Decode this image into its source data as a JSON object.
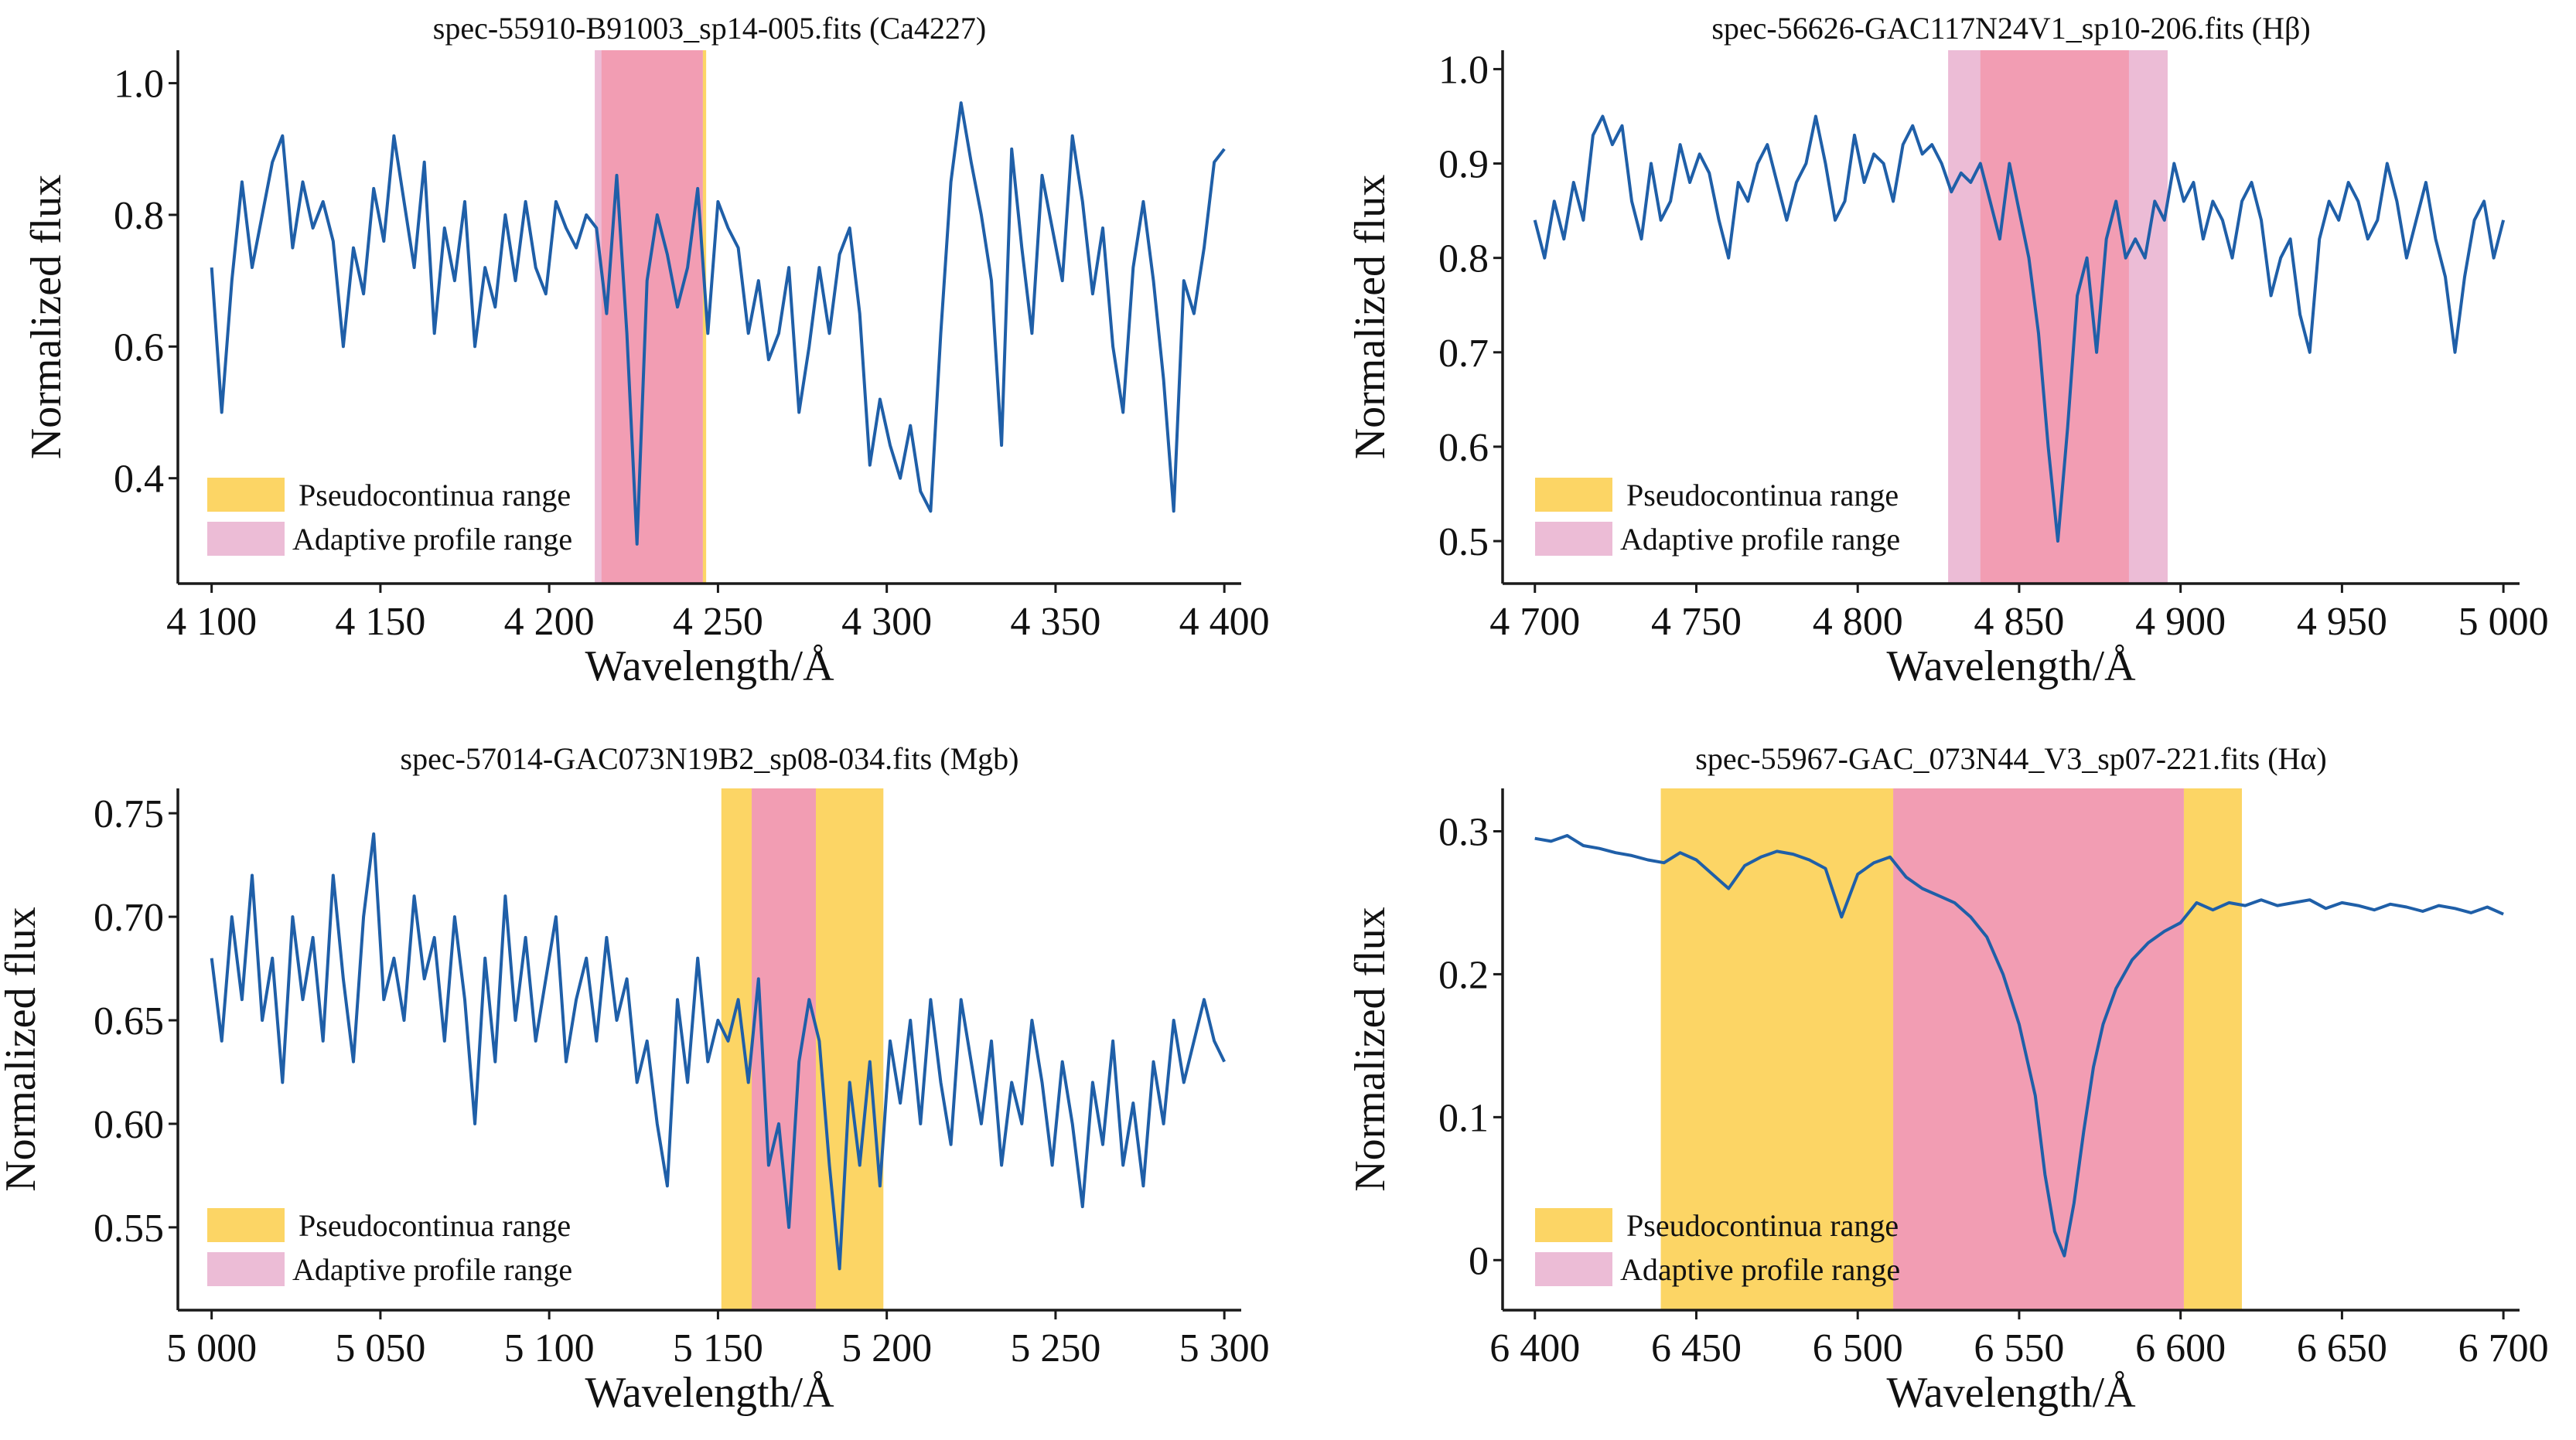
{
  "colors": {
    "line": "#1f5fa8",
    "pseudocontinua": "#fcd565",
    "adaptive_legend": "#ecbcd6",
    "overlap": "#f29db3",
    "axis": "#1a1a1a"
  },
  "chart_data": [
    {
      "type": "line",
      "title": "spec-55910-B91003_sp14-005.fits (Ca4227)",
      "xlabel": "Wavelength/Å",
      "ylabel": "Normalized flux",
      "xlim": [
        4090,
        4405
      ],
      "ylim": [
        0.24,
        1.05
      ],
      "xticks": [
        4100,
        4150,
        4200,
        4250,
        4300,
        4350,
        4400
      ],
      "xtick_labels": [
        "4 100",
        "4 150",
        "4 200",
        "4 250",
        "4 300",
        "4 350",
        "4 400"
      ],
      "yticks": [
        0.4,
        0.6,
        0.8,
        1.0
      ],
      "ytick_labels": [
        "0.4",
        "0.6",
        "0.8",
        "1.0"
      ],
      "pseudocontinua_bands": [
        [
          4215.5,
          4246.5
        ]
      ],
      "adaptive_bands": [
        [
          4213.5,
          4245.5
        ]
      ],
      "legend": [
        "Pseudocontinua range",
        "Adaptive profile range"
      ],
      "legend_position": "lower-left",
      "series": [
        {
          "x": [
            4100,
            4103,
            4106,
            4109,
            4112,
            4115,
            4118,
            4121,
            4124,
            4127,
            4130,
            4133,
            4136,
            4139,
            4142,
            4145,
            4148,
            4151,
            4154,
            4157,
            4160,
            4163,
            4166,
            4169,
            4172,
            4175,
            4178,
            4181,
            4184,
            4187,
            4190,
            4193,
            4196,
            4199,
            4202,
            4205,
            4208,
            4211,
            4214,
            4217,
            4220,
            4223,
            4226,
            4229,
            4232,
            4235,
            4238,
            4241,
            4244,
            4247,
            4250,
            4253,
            4256,
            4259,
            4262,
            4265,
            4268,
            4271,
            4274,
            4277,
            4280,
            4283,
            4286,
            4289,
            4292,
            4295,
            4298,
            4301,
            4304,
            4307,
            4310,
            4313,
            4316,
            4319,
            4322,
            4325,
            4328,
            4331,
            4334,
            4337,
            4340,
            4343,
            4346,
            4349,
            4352,
            4355,
            4358,
            4361,
            4364,
            4367,
            4370,
            4373,
            4376,
            4379,
            4382,
            4385,
            4388,
            4391,
            4394,
            4397,
            4400
          ],
          "y": [
            0.72,
            0.5,
            0.7,
            0.85,
            0.72,
            0.8,
            0.88,
            0.92,
            0.75,
            0.85,
            0.78,
            0.82,
            0.76,
            0.6,
            0.75,
            0.68,
            0.84,
            0.76,
            0.92,
            0.82,
            0.72,
            0.88,
            0.62,
            0.78,
            0.7,
            0.82,
            0.6,
            0.72,
            0.66,
            0.8,
            0.7,
            0.82,
            0.72,
            0.68,
            0.82,
            0.78,
            0.75,
            0.8,
            0.78,
            0.65,
            0.86,
            0.62,
            0.3,
            0.7,
            0.8,
            0.74,
            0.66,
            0.72,
            0.84,
            0.62,
            0.82,
            0.78,
            0.75,
            0.62,
            0.7,
            0.58,
            0.62,
            0.72,
            0.5,
            0.6,
            0.72,
            0.62,
            0.74,
            0.78,
            0.65,
            0.42,
            0.52,
            0.45,
            0.4,
            0.48,
            0.38,
            0.35,
            0.62,
            0.85,
            0.97,
            0.88,
            0.8,
            0.7,
            0.45,
            0.9,
            0.75,
            0.62,
            0.86,
            0.78,
            0.7,
            0.92,
            0.82,
            0.68,
            0.78,
            0.6,
            0.5,
            0.72,
            0.82,
            0.7,
            0.55,
            0.35,
            0.7,
            0.65,
            0.75,
            0.88,
            0.9
          ]
        }
      ]
    },
    {
      "type": "line",
      "title": "spec-56626-GAC117N24V1_sp10-206.fits (Hβ)",
      "xlabel": "Wavelength/Å",
      "ylabel": "Normalized flux",
      "xlim": [
        4690,
        5005
      ],
      "ylim": [
        0.455,
        1.02
      ],
      "xticks": [
        4700,
        4750,
        4800,
        4850,
        4900,
        4950,
        5000
      ],
      "xtick_labels": [
        "4 700",
        "4 750",
        "4 800",
        "4 850",
        "4 900",
        "4 950",
        "5 000"
      ],
      "yticks": [
        0.5,
        0.6,
        0.7,
        0.8,
        0.9,
        1.0
      ],
      "ytick_labels": [
        "0.5",
        "0.6",
        "0.7",
        "0.8",
        "0.9",
        "1.0"
      ],
      "pseudocontinua_bands": [
        [
          4838,
          4884
        ]
      ],
      "adaptive_bands": [
        [
          4828,
          4896
        ]
      ],
      "legend": [
        "Pseudocontinua range",
        "Adaptive profile range"
      ],
      "legend_position": "lower-left",
      "series": [
        {
          "x": [
            4700,
            4703,
            4706,
            4709,
            4712,
            4715,
            4718,
            4721,
            4724,
            4727,
            4730,
            4733,
            4736,
            4739,
            4742,
            4745,
            4748,
            4751,
            4754,
            4757,
            4760,
            4763,
            4766,
            4769,
            4772,
            4775,
            4778,
            4781,
            4784,
            4787,
            4790,
            4793,
            4796,
            4799,
            4802,
            4805,
            4808,
            4811,
            4814,
            4817,
            4820,
            4823,
            4826,
            4829,
            4832,
            4835,
            4838,
            4841,
            4844,
            4847,
            4850,
            4853,
            4856,
            4859,
            4862,
            4865,
            4868,
            4871,
            4874,
            4877,
            4880,
            4883,
            4886,
            4889,
            4892,
            4895,
            4898,
            4901,
            4904,
            4907,
            4910,
            4913,
            4916,
            4919,
            4922,
            4925,
            4928,
            4931,
            4934,
            4937,
            4940,
            4943,
            4946,
            4949,
            4952,
            4955,
            4958,
            4961,
            4964,
            4967,
            4970,
            4973,
            4976,
            4979,
            4982,
            4985,
            4988,
            4991,
            4994,
            4997,
            5000
          ],
          "y": [
            0.84,
            0.8,
            0.86,
            0.82,
            0.88,
            0.84,
            0.93,
            0.95,
            0.92,
            0.94,
            0.86,
            0.82,
            0.9,
            0.84,
            0.86,
            0.92,
            0.88,
            0.91,
            0.89,
            0.84,
            0.8,
            0.88,
            0.86,
            0.9,
            0.92,
            0.88,
            0.84,
            0.88,
            0.9,
            0.95,
            0.9,
            0.84,
            0.86,
            0.93,
            0.88,
            0.91,
            0.9,
            0.86,
            0.92,
            0.94,
            0.91,
            0.92,
            0.9,
            0.87,
            0.89,
            0.88,
            0.9,
            0.86,
            0.82,
            0.9,
            0.85,
            0.8,
            0.72,
            0.6,
            0.5,
            0.62,
            0.76,
            0.8,
            0.7,
            0.82,
            0.86,
            0.8,
            0.82,
            0.8,
            0.86,
            0.84,
            0.9,
            0.86,
            0.88,
            0.82,
            0.86,
            0.84,
            0.8,
            0.86,
            0.88,
            0.84,
            0.76,
            0.8,
            0.82,
            0.74,
            0.7,
            0.82,
            0.86,
            0.84,
            0.88,
            0.86,
            0.82,
            0.84,
            0.9,
            0.86,
            0.8,
            0.84,
            0.88,
            0.82,
            0.78,
            0.7,
            0.78,
            0.84,
            0.86,
            0.8,
            0.84
          ]
        }
      ]
    },
    {
      "type": "line",
      "title": "spec-57014-GAC073N19B2_sp08-034.fits (Mgb)",
      "xlabel": "Wavelength/Å",
      "ylabel": "Normalized flux",
      "xlim": [
        4990,
        5305
      ],
      "ylim": [
        0.51,
        0.762
      ],
      "xticks": [
        5000,
        5050,
        5100,
        5150,
        5200,
        5250,
        5300
      ],
      "xtick_labels": [
        "5 000",
        "5 050",
        "5 100",
        "5 150",
        "5 200",
        "5 250",
        "5 300"
      ],
      "yticks": [
        0.55,
        0.6,
        0.65,
        0.7,
        0.75
      ],
      "ytick_labels": [
        "0.55",
        "0.60",
        "0.65",
        "0.70",
        "0.75"
      ],
      "pseudocontinua_bands": [
        [
          5151,
          5199
        ]
      ],
      "adaptive_bands": [
        [
          5160,
          5179
        ]
      ],
      "legend": [
        "Pseudocontinua range",
        "Adaptive profile range"
      ],
      "legend_position": "lower-left",
      "series": [
        {
          "x": [
            5000,
            5003,
            5006,
            5009,
            5012,
            5015,
            5018,
            5021,
            5024,
            5027,
            5030,
            5033,
            5036,
            5039,
            5042,
            5045,
            5048,
            5051,
            5054,
            5057,
            5060,
            5063,
            5066,
            5069,
            5072,
            5075,
            5078,
            5081,
            5084,
            5087,
            5090,
            5093,
            5096,
            5099,
            5102,
            5105,
            5108,
            5111,
            5114,
            5117,
            5120,
            5123,
            5126,
            5129,
            5132,
            5135,
            5138,
            5141,
            5144,
            5147,
            5150,
            5153,
            5156,
            5159,
            5162,
            5165,
            5168,
            5171,
            5174,
            5177,
            5180,
            5183,
            5186,
            5189,
            5192,
            5195,
            5198,
            5201,
            5204,
            5207,
            5210,
            5213,
            5216,
            5219,
            5222,
            5225,
            5228,
            5231,
            5234,
            5237,
            5240,
            5243,
            5246,
            5249,
            5252,
            5255,
            5258,
            5261,
            5264,
            5267,
            5270,
            5273,
            5276,
            5279,
            5282,
            5285,
            5288,
            5291,
            5294,
            5297,
            5300
          ],
          "y": [
            0.68,
            0.64,
            0.7,
            0.66,
            0.72,
            0.65,
            0.68,
            0.62,
            0.7,
            0.66,
            0.69,
            0.64,
            0.72,
            0.67,
            0.63,
            0.7,
            0.74,
            0.66,
            0.68,
            0.65,
            0.71,
            0.67,
            0.69,
            0.64,
            0.7,
            0.66,
            0.6,
            0.68,
            0.63,
            0.71,
            0.65,
            0.69,
            0.64,
            0.67,
            0.7,
            0.63,
            0.66,
            0.68,
            0.64,
            0.69,
            0.65,
            0.67,
            0.62,
            0.64,
            0.6,
            0.57,
            0.66,
            0.62,
            0.68,
            0.63,
            0.65,
            0.64,
            0.66,
            0.62,
            0.67,
            0.58,
            0.6,
            0.55,
            0.63,
            0.66,
            0.64,
            0.58,
            0.53,
            0.62,
            0.58,
            0.63,
            0.57,
            0.64,
            0.61,
            0.65,
            0.6,
            0.66,
            0.62,
            0.59,
            0.66,
            0.63,
            0.6,
            0.64,
            0.58,
            0.62,
            0.6,
            0.65,
            0.62,
            0.58,
            0.63,
            0.6,
            0.56,
            0.62,
            0.59,
            0.64,
            0.58,
            0.61,
            0.57,
            0.63,
            0.6,
            0.65,
            0.62,
            0.64,
            0.66,
            0.64,
            0.63
          ]
        }
      ]
    },
    {
      "type": "line",
      "title": "spec-55967-GAC_073N44_V3_sp07-221.fits (Hα)",
      "xlabel": "Wavelength/Å",
      "ylabel": "Normalized flux",
      "xlim": [
        6390,
        6705
      ],
      "ylim": [
        -0.035,
        0.33
      ],
      "xticks": [
        6400,
        6450,
        6500,
        6550,
        6600,
        6650,
        6700
      ],
      "xtick_labels": [
        "6 400",
        "6 450",
        "6 500",
        "6 550",
        "6 600",
        "6 650",
        "6 700"
      ],
      "yticks": [
        0,
        0.1,
        0.2,
        0.3
      ],
      "ytick_labels": [
        "0",
        "0.1",
        "0.2",
        "0.3"
      ],
      "pseudocontinua_bands": [
        [
          6439,
          6619
        ]
      ],
      "adaptive_bands": [
        [
          6511,
          6601
        ]
      ],
      "legend": [
        "Pseudocontinua range",
        "Adaptive profile range"
      ],
      "legend_position": "lower-left",
      "series": [
        {
          "x": [
            6400,
            6405,
            6410,
            6415,
            6420,
            6425,
            6430,
            6435,
            6440,
            6445,
            6450,
            6455,
            6460,
            6465,
            6470,
            6475,
            6480,
            6485,
            6490,
            6495,
            6500,
            6505,
            6510,
            6515,
            6520,
            6525,
            6530,
            6535,
            6540,
            6545,
            6550,
            6555,
            6558,
            6561,
            6564,
            6567,
            6570,
            6573,
            6576,
            6580,
            6585,
            6590,
            6595,
            6600,
            6605,
            6610,
            6615,
            6620,
            6625,
            6630,
            6635,
            6640,
            6645,
            6650,
            6655,
            6660,
            6665,
            6670,
            6675,
            6680,
            6685,
            6690,
            6695,
            6700
          ],
          "y": [
            0.295,
            0.293,
            0.297,
            0.29,
            0.288,
            0.285,
            0.283,
            0.28,
            0.278,
            0.285,
            0.28,
            0.27,
            0.26,
            0.276,
            0.282,
            0.286,
            0.284,
            0.28,
            0.274,
            0.24,
            0.27,
            0.278,
            0.282,
            0.268,
            0.26,
            0.255,
            0.25,
            0.24,
            0.226,
            0.2,
            0.165,
            0.115,
            0.06,
            0.02,
            0.003,
            0.04,
            0.09,
            0.135,
            0.165,
            0.19,
            0.21,
            0.222,
            0.23,
            0.236,
            0.25,
            0.245,
            0.25,
            0.248,
            0.252,
            0.248,
            0.25,
            0.252,
            0.246,
            0.25,
            0.248,
            0.245,
            0.249,
            0.247,
            0.244,
            0.248,
            0.246,
            0.243,
            0.247,
            0.242
          ]
        }
      ]
    }
  ]
}
